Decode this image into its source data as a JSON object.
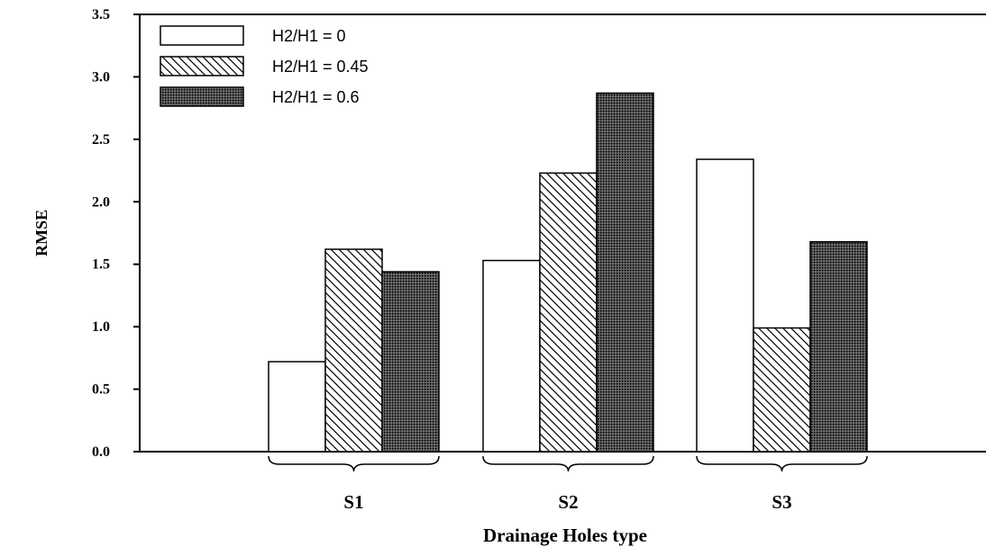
{
  "chart_data": {
    "type": "bar",
    "title": "",
    "xlabel": "Drainage Holes type",
    "ylabel": "RMSE",
    "categories": [
      "S1",
      "S2",
      "S3"
    ],
    "ylim": [
      0,
      3.5
    ],
    "yticks": [
      "0.0",
      "0.5",
      "1.0",
      "1.5",
      "2.0",
      "2.5",
      "3.0",
      "3.5"
    ],
    "grid": false,
    "legend_position": "top-left",
    "series": [
      {
        "name": "H2/H1 = 0",
        "fill": "white",
        "values": [
          0.72,
          1.53,
          2.34
        ]
      },
      {
        "name": "H2/H1 = 0.45",
        "fill": "diagonal-hatch",
        "values": [
          1.62,
          2.23,
          0.99
        ]
      },
      {
        "name": "H2/H1 = 0.6",
        "fill": "dense-dot",
        "values": [
          1.44,
          2.87,
          1.68
        ]
      }
    ]
  }
}
